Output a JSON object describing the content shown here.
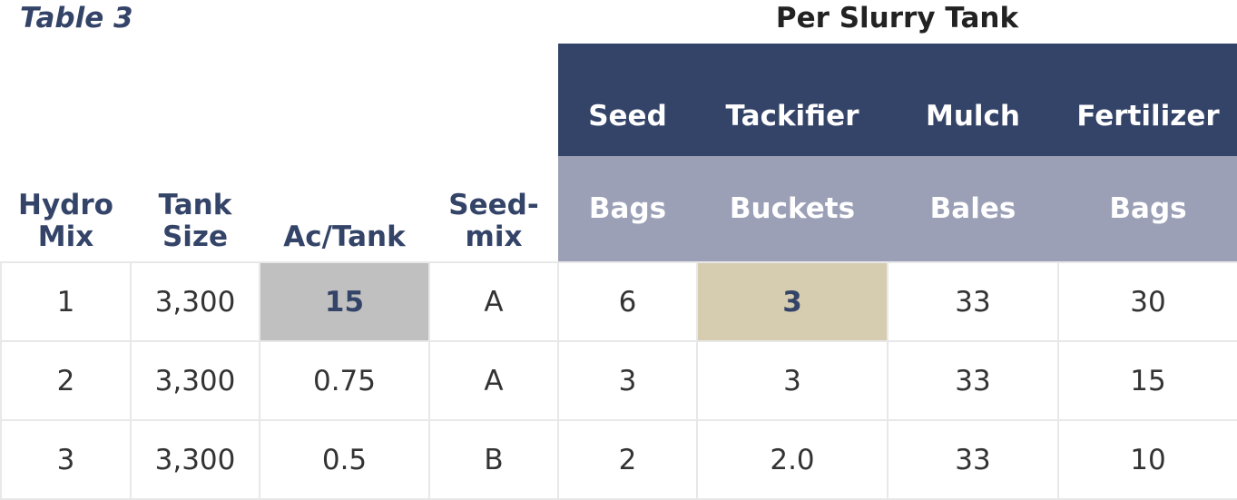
{
  "table_label": "Table 3",
  "group_title": "Per Slurry Tank",
  "group_headers": [
    "Seed",
    "Tackifier",
    "Mulch",
    "Fertilizer"
  ],
  "unit_headers": [
    "Bags",
    "Buckets",
    "Bales",
    "Bags"
  ],
  "left_headers": [
    "Hydro\nMix",
    "Tank\nSize",
    "Ac/Tank",
    "Seed-\nmix"
  ],
  "rows": [
    [
      "1",
      "3,300",
      "15",
      "A",
      "6",
      "3",
      "33",
      "30"
    ],
    [
      "2",
      "3,300",
      "0.75",
      "A",
      "3",
      "3",
      "33",
      "15"
    ],
    [
      "3",
      "3,300",
      "0.5",
      "B",
      "2",
      "2.0",
      "33",
      "10"
    ]
  ],
  "highlight_colors": {
    "ac_tank_row1": "#c0c0c0",
    "tackifier_row1": "#d6cdb0",
    "header_dark": "#344468",
    "header_light": "#9ba0b6"
  }
}
